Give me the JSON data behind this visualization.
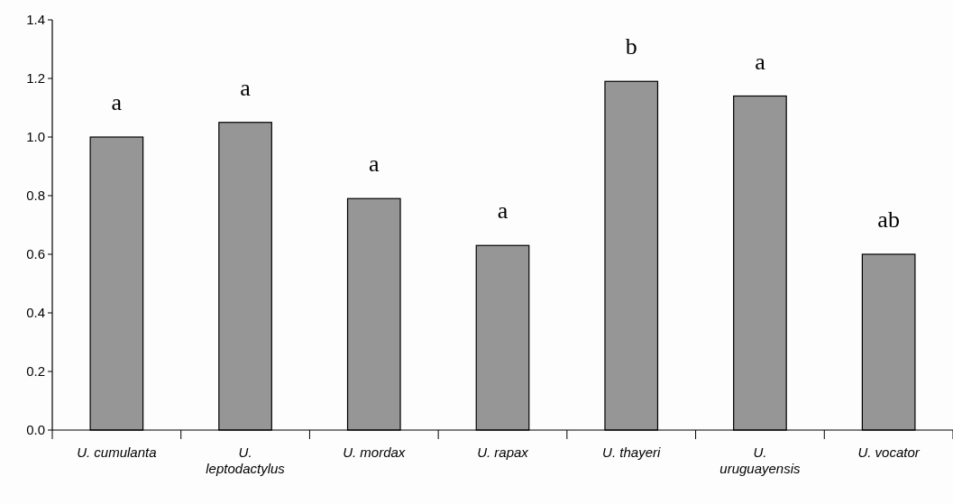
{
  "chart_data": {
    "type": "bar",
    "categories": [
      "U. cumulanta",
      "U. leptodactylus",
      "U. mordax",
      "U. rapax",
      "U. thayeri",
      "U. uruguayensis",
      "U. vocator"
    ],
    "values": [
      1.0,
      1.05,
      0.79,
      0.63,
      1.19,
      1.14,
      0.6
    ],
    "color": "#969696",
    "ylim": [
      0,
      1.4
    ],
    "yticks": [
      {
        "value": 0,
        "label": "0.0"
      },
      {
        "value": 0.2,
        "label": "0.2"
      },
      {
        "value": 0.4,
        "label": "0.4"
      },
      {
        "value": 0.6,
        "label": "0.6"
      },
      {
        "value": 0.8,
        "label": "0.8"
      },
      {
        "value": 1.0,
        "label": "1.0"
      },
      {
        "value": 1.2,
        "label": "1.2"
      },
      {
        "value": 1.4,
        "label": "1.4"
      }
    ],
    "annotations": [
      "a",
      "a",
      "a",
      "a",
      "b",
      "a",
      "ab"
    ]
  }
}
